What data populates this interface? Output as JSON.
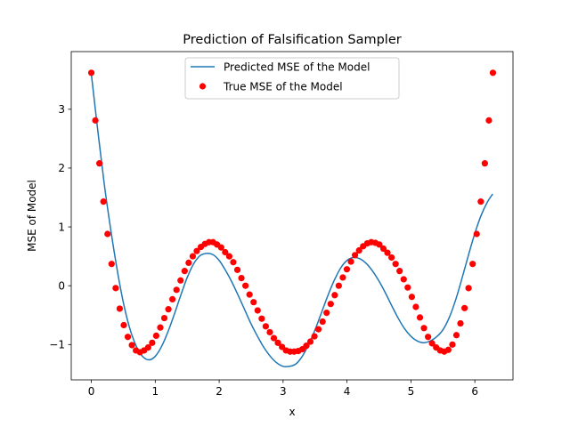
{
  "chart_data": {
    "type": "line+scatter",
    "title": "Prediction of Falsification Sampler",
    "xlabel": "x",
    "ylabel": "MSE of Model",
    "xlim": [
      -0.314,
      6.597
    ],
    "ylim": [
      -1.6,
      3.98
    ],
    "xticks": [
      0,
      1,
      2,
      3,
      4,
      5,
      6
    ],
    "yticks": [
      -1,
      0,
      1,
      2,
      3
    ],
    "grid": false,
    "legend_position": "top-center",
    "series": [
      {
        "name": "Predicted MSE of the Model",
        "kind": "line",
        "color": "#1f77b4",
        "x": [
          0.0,
          0.1,
          0.2,
          0.3,
          0.4,
          0.5,
          0.6,
          0.7,
          0.8,
          0.9,
          1.0,
          1.1,
          1.2,
          1.3,
          1.4,
          1.5,
          1.6,
          1.7,
          1.8,
          1.9,
          2.0,
          2.1,
          2.2,
          2.3,
          2.4,
          2.5,
          2.6,
          2.7,
          2.8,
          2.9,
          3.0,
          3.1,
          3.2,
          3.3,
          3.4,
          3.5,
          3.6,
          3.7,
          3.8,
          3.9,
          4.0,
          4.1,
          4.2,
          4.3,
          4.4,
          4.5,
          4.6,
          4.7,
          4.8,
          4.9,
          5.0,
          5.1,
          5.2,
          5.3,
          5.4,
          5.5,
          5.6,
          5.7,
          5.8,
          5.9,
          6.0,
          6.1,
          6.2,
          6.28
        ],
        "y": [
          3.6,
          2.65,
          1.75,
          0.98,
          0.3,
          -0.28,
          -0.72,
          -1.02,
          -1.2,
          -1.26,
          -1.2,
          -1.03,
          -0.78,
          -0.48,
          -0.16,
          0.14,
          0.37,
          0.51,
          0.55,
          0.53,
          0.43,
          0.26,
          0.06,
          -0.17,
          -0.41,
          -0.65,
          -0.86,
          -1.05,
          -1.2,
          -1.31,
          -1.37,
          -1.37,
          -1.33,
          -1.2,
          -1.0,
          -0.75,
          -0.46,
          -0.17,
          0.09,
          0.3,
          0.43,
          0.48,
          0.46,
          0.38,
          0.25,
          0.08,
          -0.12,
          -0.34,
          -0.55,
          -0.73,
          -0.86,
          -0.94,
          -0.97,
          -0.94,
          -0.87,
          -0.75,
          -0.54,
          -0.24,
          0.13,
          0.52,
          0.89,
          1.2,
          1.43,
          1.56
        ]
      },
      {
        "name": "True MSE of the Model",
        "kind": "scatter",
        "color": "#ff0000",
        "x": [
          0.0,
          0.063,
          0.127,
          0.19,
          0.254,
          0.317,
          0.381,
          0.444,
          0.508,
          0.571,
          0.635,
          0.698,
          0.762,
          0.825,
          0.889,
          0.952,
          1.015,
          1.079,
          1.142,
          1.206,
          1.269,
          1.333,
          1.396,
          1.46,
          1.523,
          1.587,
          1.65,
          1.714,
          1.777,
          1.841,
          1.904,
          1.967,
          2.031,
          2.094,
          2.158,
          2.221,
          2.285,
          2.348,
          2.412,
          2.475,
          2.539,
          2.602,
          2.666,
          2.729,
          2.793,
          2.856,
          2.919,
          2.983,
          3.046,
          3.11,
          3.173,
          3.237,
          3.3,
          3.364,
          3.427,
          3.491,
          3.554,
          3.618,
          3.681,
          3.745,
          3.808,
          3.871,
          3.935,
          3.998,
          4.062,
          4.125,
          4.189,
          4.252,
          4.316,
          4.379,
          4.443,
          4.506,
          4.57,
          4.633,
          4.697,
          4.76,
          4.823,
          4.887,
          4.95,
          5.014,
          5.077,
          5.141,
          5.204,
          5.268,
          5.331,
          5.395,
          5.458,
          5.522,
          5.585,
          5.649,
          5.712,
          5.775,
          5.839,
          5.902,
          5.966,
          6.029,
          6.093,
          6.156,
          6.22,
          6.283
        ],
        "y": [
          3.62,
          2.81,
          2.08,
          1.43,
          0.88,
          0.37,
          -0.04,
          -0.39,
          -0.67,
          -0.87,
          -1.01,
          -1.1,
          -1.13,
          -1.1,
          -1.05,
          -0.97,
          -0.85,
          -0.71,
          -0.55,
          -0.4,
          -0.23,
          -0.07,
          0.09,
          0.25,
          0.39,
          0.5,
          0.59,
          0.66,
          0.71,
          0.74,
          0.74,
          0.7,
          0.65,
          0.57,
          0.5,
          0.4,
          0.27,
          0.13,
          0.0,
          -0.15,
          -0.28,
          -0.42,
          -0.56,
          -0.69,
          -0.79,
          -0.89,
          -0.97,
          -1.04,
          -1.1,
          -1.12,
          -1.12,
          -1.11,
          -1.08,
          -1.02,
          -0.95,
          -0.86,
          -0.74,
          -0.61,
          -0.46,
          -0.31,
          -0.16,
          0.0,
          0.14,
          0.28,
          0.41,
          0.52,
          0.6,
          0.67,
          0.72,
          0.74,
          0.73,
          0.7,
          0.63,
          0.56,
          0.48,
          0.37,
          0.25,
          0.11,
          -0.03,
          -0.19,
          -0.36,
          -0.54,
          -0.72,
          -0.87,
          -0.98,
          -1.05,
          -1.1,
          -1.12,
          -1.09,
          -1.0,
          -0.84,
          -0.64,
          -0.38,
          -0.04,
          0.37,
          0.88,
          1.43,
          2.08,
          2.81,
          3.62
        ]
      }
    ]
  }
}
